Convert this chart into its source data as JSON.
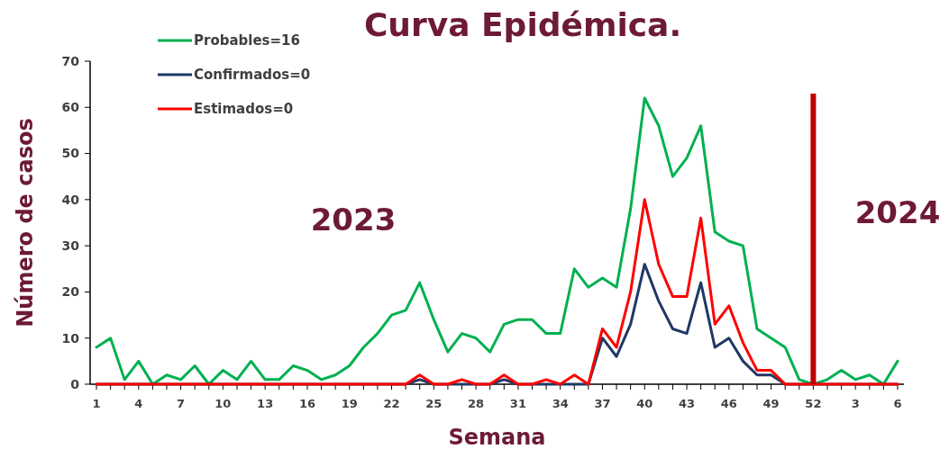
{
  "chart_data": {
    "type": "line",
    "title": "Curva Epidémica.",
    "xlabel": "Semana",
    "ylabel": "Número de casos",
    "categories": [
      "1",
      null,
      null,
      "4",
      null,
      null,
      "7",
      null,
      null,
      "10",
      null,
      null,
      "13",
      null,
      null,
      "16",
      null,
      null,
      "19",
      null,
      null,
      "22",
      null,
      null,
      "25",
      null,
      null,
      "28",
      null,
      null,
      "31",
      null,
      null,
      "34",
      null,
      null,
      "37",
      null,
      null,
      "40",
      null,
      null,
      "43",
      null,
      null,
      "46",
      null,
      null,
      "49",
      null,
      null,
      "52",
      null,
      null,
      "3",
      null,
      null,
      "6"
    ],
    "series": [
      {
        "name": "Probables=16",
        "color": "#00b050",
        "values": [
          8,
          10,
          1,
          5,
          0,
          2,
          1,
          4,
          0,
          3,
          1,
          5,
          1,
          1,
          4,
          3,
          1,
          2,
          4,
          8,
          11,
          15,
          16,
          22,
          14,
          7,
          11,
          10,
          7,
          13,
          14,
          14,
          11,
          11,
          25,
          21,
          23,
          21,
          38,
          62,
          56,
          45,
          49,
          56,
          33,
          31,
          30,
          12,
          10,
          8,
          1,
          0,
          1,
          3,
          1,
          2,
          0,
          5
        ]
      },
      {
        "name": "Confirmados=0",
        "color": "#1f3864",
        "values": [
          0,
          0,
          0,
          0,
          0,
          0,
          0,
          0,
          0,
          0,
          0,
          0,
          0,
          0,
          0,
          0,
          0,
          0,
          0,
          0,
          0,
          0,
          0,
          1,
          0,
          0,
          0,
          0,
          0,
          1,
          0,
          0,
          0,
          0,
          0,
          0,
          10,
          6,
          13,
          26,
          18,
          12,
          11,
          22,
          8,
          10,
          5,
          2,
          2,
          0,
          0,
          0,
          0,
          0,
          0,
          0,
          0,
          0
        ]
      },
      {
        "name": "Estimados=0",
        "color": "#ff0000",
        "values": [
          0,
          0,
          0,
          0,
          0,
          0,
          0,
          0,
          0,
          0,
          0,
          0,
          0,
          0,
          0,
          0,
          0,
          0,
          0,
          0,
          0,
          0,
          0,
          2,
          0,
          0,
          1,
          0,
          0,
          2,
          0,
          0,
          1,
          0,
          2,
          0,
          12,
          8,
          20,
          40,
          26,
          19,
          19,
          36,
          13,
          17,
          9,
          3,
          3,
          0,
          0,
          0,
          0,
          0,
          0,
          0,
          0,
          0
        ]
      }
    ],
    "ylim": [
      0,
      70
    ],
    "yticks": [
      0,
      10,
      20,
      30,
      40,
      50,
      60,
      70
    ],
    "grid": false,
    "legend": "top left",
    "marker": "none",
    "line_style": "solid",
    "ref_lines": [
      {
        "axis": "x",
        "value": "52",
        "color": "#c00000"
      }
    ],
    "annotations": [
      "2023",
      "2024"
    ]
  }
}
